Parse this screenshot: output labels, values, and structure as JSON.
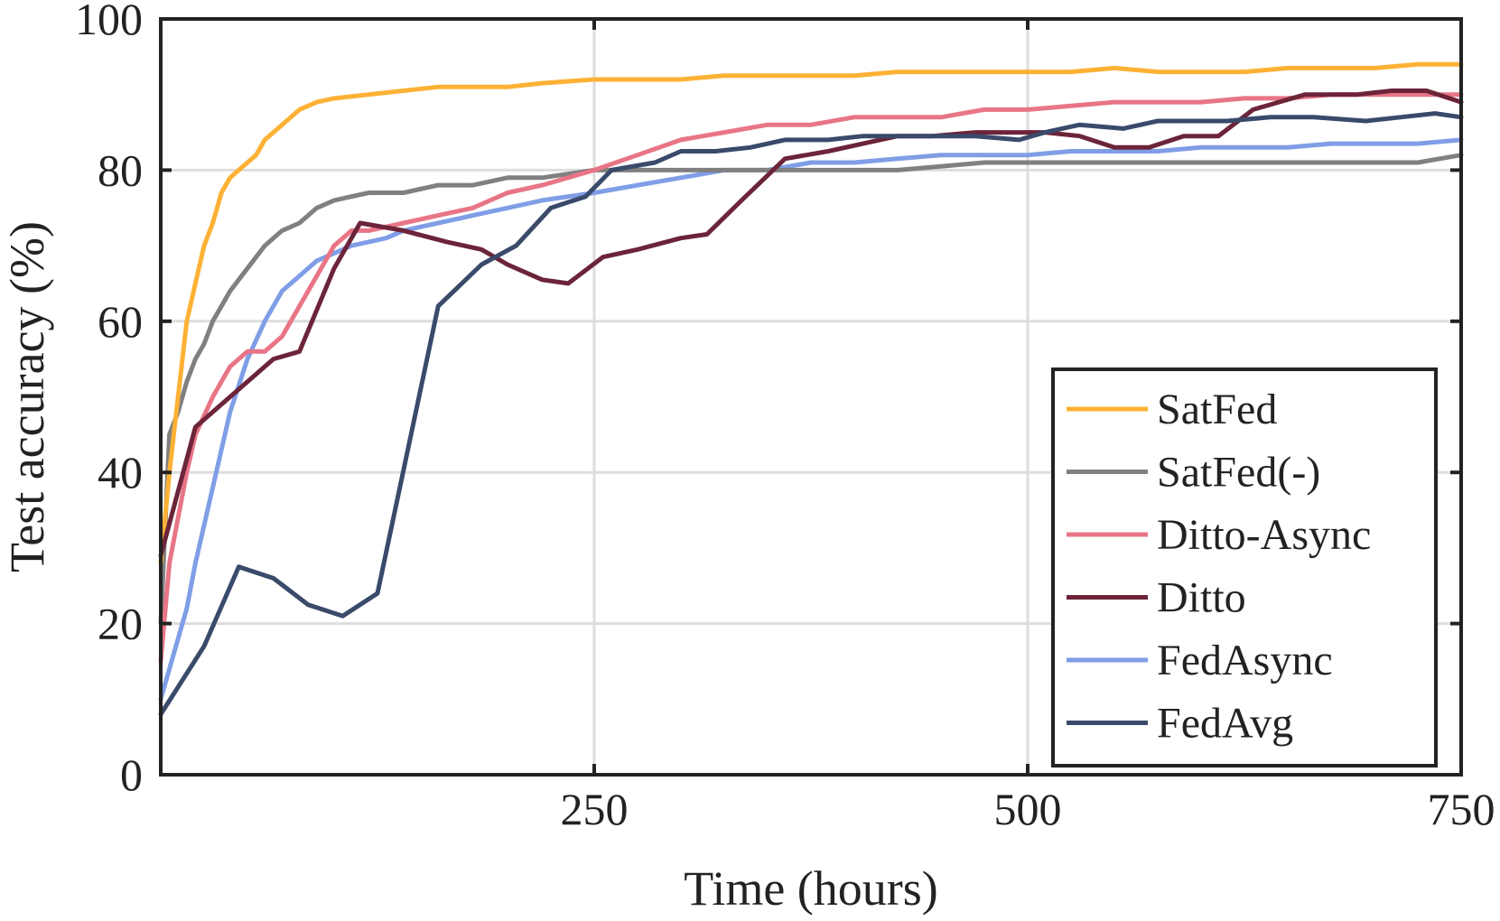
{
  "chart_data": {
    "type": "line",
    "xlabel": "Time (hours)",
    "ylabel": "Test accuracy (%)",
    "xlim": [
      0,
      750
    ],
    "ylim": [
      0,
      100
    ],
    "x_ticks": [
      250,
      500,
      750
    ],
    "y_ticks": [
      0,
      20,
      40,
      60,
      80,
      100
    ],
    "grid": true,
    "legend_position": "bottom-right",
    "series": [
      {
        "name": "SatFed",
        "color": "#FDB135",
        "x": [
          0,
          5,
          10,
          15,
          20,
          25,
          30,
          35,
          40,
          45,
          50,
          55,
          60,
          70,
          80,
          90,
          100,
          120,
          140,
          160,
          180,
          200,
          220,
          250,
          275,
          300,
          325,
          350,
          375,
          400,
          425,
          450,
          475,
          500,
          525,
          550,
          575,
          600,
          625,
          650,
          675,
          700,
          725,
          750
        ],
        "values": [
          28,
          40,
          50,
          60,
          65,
          70,
          73,
          77,
          79,
          80,
          81,
          82,
          84,
          86,
          88,
          89,
          89.5,
          90,
          90.5,
          91,
          91,
          91,
          91.5,
          92,
          92,
          92,
          92.5,
          92.5,
          92.5,
          92.5,
          93,
          93,
          93,
          93,
          93,
          93.5,
          93,
          93,
          93,
          93.5,
          93.5,
          93.5,
          94,
          94
        ]
      },
      {
        "name": "SatFed(-)",
        "color": "#808080",
        "x": [
          0,
          5,
          10,
          15,
          20,
          25,
          30,
          35,
          40,
          50,
          60,
          70,
          80,
          90,
          100,
          120,
          140,
          160,
          180,
          200,
          220,
          250,
          275,
          300,
          325,
          350,
          375,
          400,
          425,
          450,
          475,
          500,
          525,
          550,
          575,
          600,
          625,
          650,
          675,
          700,
          725,
          750
        ],
        "values": [
          20,
          45,
          48,
          52,
          55,
          57,
          60,
          62,
          64,
          67,
          70,
          72,
          73,
          75,
          76,
          77,
          77,
          78,
          78,
          79,
          79,
          80,
          80,
          80,
          80,
          80,
          80,
          80,
          80,
          80.5,
          81,
          81,
          81,
          81,
          81,
          81,
          81,
          81,
          81,
          81,
          81,
          82
        ]
      },
      {
        "name": "Ditto-Async",
        "color": "#E87586",
        "x": [
          0,
          5,
          10,
          15,
          20,
          30,
          40,
          50,
          60,
          70,
          80,
          90,
          100,
          110,
          120,
          140,
          160,
          180,
          200,
          220,
          250,
          275,
          300,
          325,
          350,
          375,
          400,
          425,
          450,
          475,
          500,
          525,
          550,
          575,
          600,
          625,
          650,
          675,
          700,
          725,
          750
        ],
        "values": [
          15,
          28,
          34,
          40,
          45,
          50,
          54,
          56,
          56,
          58,
          62,
          66,
          70,
          72,
          72,
          73,
          74,
          75,
          77,
          78,
          80,
          82,
          84,
          85,
          86,
          86,
          87,
          87,
          87,
          88,
          88,
          88.5,
          89,
          89,
          89,
          89.5,
          89.5,
          90,
          90,
          90,
          90
        ]
      },
      {
        "name": "Ditto",
        "color": "#6C2439",
        "x": [
          0,
          20,
          65,
          80,
          100,
          115,
          140,
          165,
          185,
          200,
          220,
          235,
          255,
          275,
          300,
          315,
          335,
          360,
          385,
          405,
          425,
          445,
          470,
          490,
          510,
          530,
          550,
          570,
          590,
          610,
          630,
          660,
          690,
          710,
          730,
          750
        ],
        "values": [
          29,
          46,
          55,
          56,
          67,
          73,
          72,
          70.5,
          69.5,
          67.5,
          65.5,
          65,
          68.5,
          69.5,
          71,
          71.5,
          76,
          81.5,
          82.5,
          83.5,
          84.5,
          84.5,
          85,
          85,
          85,
          84.5,
          83,
          83,
          84.5,
          84.5,
          88,
          90,
          90,
          90.5,
          90.5,
          89
        ]
      },
      {
        "name": "FedAsync",
        "color": "#7F9EE6",
        "x": [
          0,
          5,
          10,
          15,
          20,
          30,
          40,
          50,
          60,
          70,
          80,
          90,
          100,
          110,
          120,
          130,
          140,
          150,
          160,
          170,
          180,
          200,
          220,
          250,
          275,
          300,
          325,
          350,
          375,
          400,
          425,
          450,
          475,
          500,
          525,
          550,
          575,
          600,
          625,
          650,
          675,
          700,
          725,
          750
        ],
        "values": [
          10,
          14,
          18,
          22,
          28,
          38,
          48,
          55,
          60,
          64,
          66,
          68,
          69,
          70,
          70.5,
          71,
          72,
          72.5,
          73,
          73.5,
          74,
          75,
          76,
          77,
          78,
          79,
          80,
          80,
          81,
          81,
          81.5,
          82,
          82,
          82,
          82.5,
          82.5,
          82.5,
          83,
          83,
          83,
          83.5,
          83.5,
          83.5,
          84
        ]
      },
      {
        "name": "FedAvg",
        "color": "#3A4A6B",
        "x": [
          0,
          25,
          45,
          65,
          85,
          105,
          125,
          160,
          185,
          205,
          225,
          245,
          260,
          285,
          300,
          320,
          340,
          360,
          385,
          405,
          425,
          450,
          470,
          495,
          510,
          530,
          555,
          575,
          595,
          615,
          640,
          665,
          695,
          715,
          735,
          750
        ],
        "values": [
          8,
          17,
          27.5,
          26,
          22.5,
          21,
          24,
          62,
          67.5,
          70,
          75,
          76.5,
          80,
          81,
          82.5,
          82.5,
          83,
          84,
          84,
          84.5,
          84.5,
          84.5,
          84.5,
          84,
          85,
          86,
          85.5,
          86.5,
          86.5,
          86.5,
          87,
          87,
          86.5,
          87,
          87.5,
          87
        ]
      }
    ]
  }
}
